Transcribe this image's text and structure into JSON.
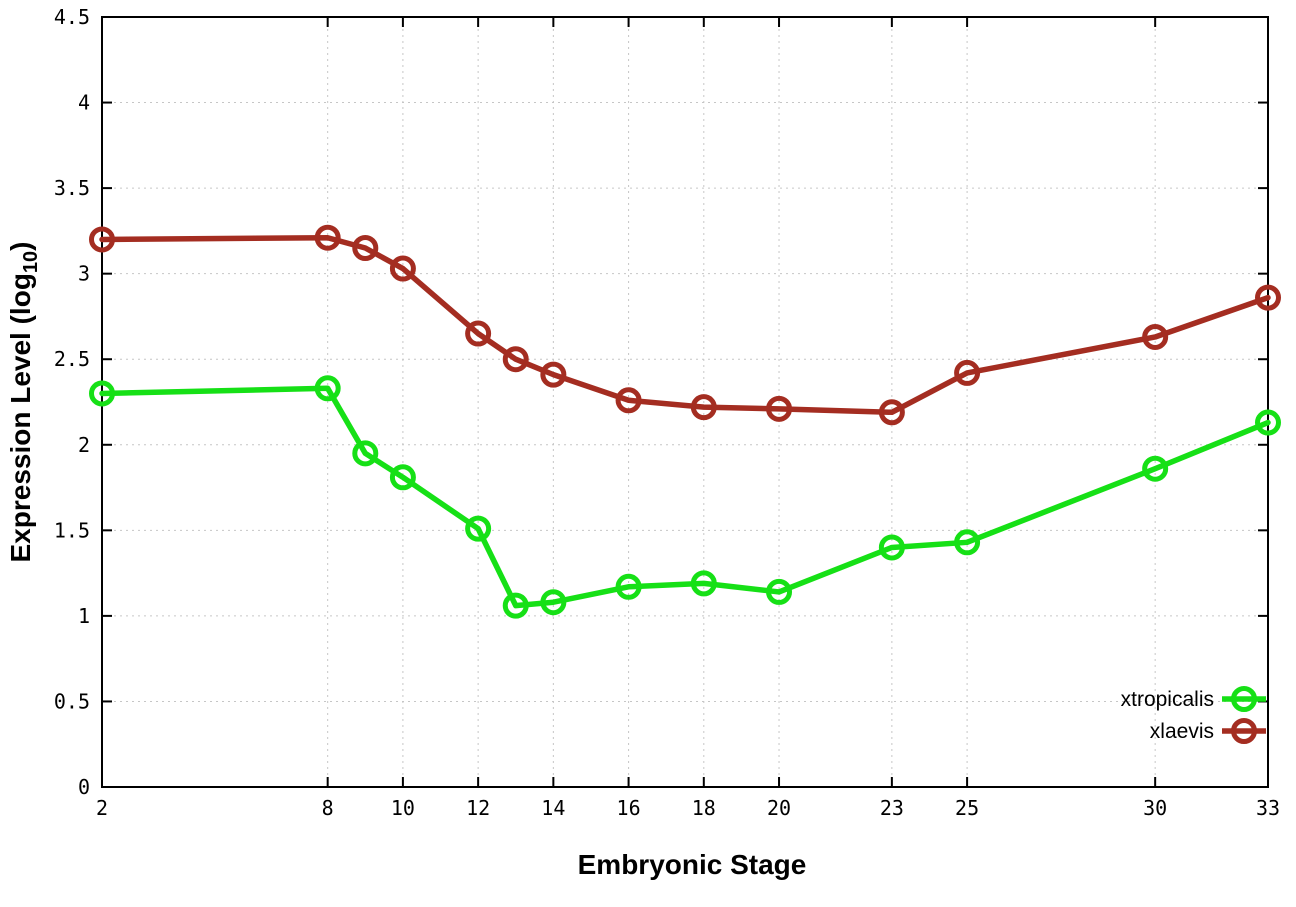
{
  "chart_data": {
    "type": "line",
    "title": "",
    "xlabel": "Embryonic Stage",
    "ylabel": "Expression Level (log10)",
    "ylabel_parts": {
      "main": "Expression Level (log",
      "sub": "10",
      "end": ")"
    },
    "x": [
      2,
      8,
      9,
      10,
      12,
      13,
      14,
      16,
      18,
      20,
      23,
      25,
      30,
      33
    ],
    "xlim": [
      2,
      33
    ],
    "ylim": [
      0,
      4.5
    ],
    "xticks": [
      2,
      8,
      10,
      12,
      14,
      16,
      18,
      20,
      23,
      25,
      30,
      33
    ],
    "yticks": [
      0,
      0.5,
      1,
      1.5,
      2,
      2.5,
      3,
      3.5,
      4,
      4.5
    ],
    "grid": true,
    "legend": {
      "position": "bottom-right",
      "entries": [
        "xtropicalis",
        "xlaevis"
      ]
    },
    "series": [
      {
        "name": "xtropicalis",
        "color": "#16e016",
        "values": [
          2.3,
          2.33,
          1.95,
          1.81,
          1.51,
          1.06,
          1.08,
          1.17,
          1.19,
          1.14,
          1.4,
          1.43,
          1.86,
          2.13
        ]
      },
      {
        "name": "xlaevis",
        "color": "#a42d21",
        "values": [
          3.2,
          3.21,
          3.15,
          3.03,
          2.65,
          2.5,
          2.41,
          2.26,
          2.22,
          2.21,
          2.19,
          2.42,
          2.63,
          2.86
        ]
      }
    ],
    "styles": {
      "background": "#ffffff",
      "border_color": "#000000",
      "grid_color": "#c6c6c6",
      "text_color": "#000000"
    }
  }
}
